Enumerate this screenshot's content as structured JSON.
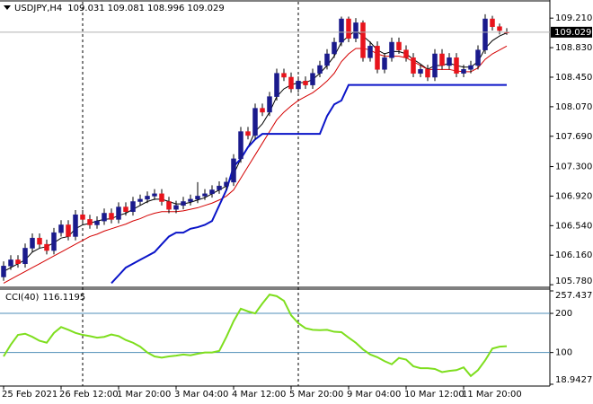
{
  "chart_data": [
    {
      "type": "candlestick",
      "title": "USDJPY,H4",
      "ohlc": [
        109.031,
        109.081,
        108.996,
        109.029
      ],
      "bull_color": "#1a1a8c",
      "bear_color": "#e8141c",
      "wick_color": "#000000",
      "categories": [
        "25 Feb 2021",
        null,
        null,
        null,
        null,
        null,
        null,
        null,
        "26 Feb 12:00",
        null,
        null,
        null,
        null,
        null,
        null,
        null,
        "1 Mar 20:00",
        null,
        null,
        null,
        null,
        null,
        null,
        null,
        "3 Mar 04:00",
        null,
        null,
        null,
        null,
        null,
        null,
        null,
        "4 Mar 12:00",
        null,
        null,
        null,
        null,
        null,
        null,
        null,
        "5 Mar 20:00",
        null,
        null,
        null,
        null,
        null,
        null,
        null,
        "9 Mar 04:00",
        null,
        null,
        null,
        null,
        null,
        null,
        null,
        "10 Mar 12:00",
        null,
        null,
        null,
        null,
        null,
        null,
        null,
        "11 Mar 20:00",
        null,
        null,
        null,
        null,
        null,
        null
      ],
      "open": [
        105.88,
        106.02,
        106.1,
        106.05,
        106.25,
        106.38,
        106.3,
        106.22,
        106.45,
        106.55,
        106.4,
        106.68,
        106.62,
        106.55,
        106.6,
        106.7,
        106.62,
        106.78,
        106.72,
        106.85,
        106.88,
        106.92,
        106.95,
        106.85,
        106.75,
        106.8,
        106.85,
        106.88,
        106.92,
        106.95,
        107.0,
        107.05,
        107.1,
        107.4,
        107.75,
        107.7,
        108.05,
        108.0,
        108.2,
        108.5,
        108.45,
        108.3,
        108.4,
        108.35,
        108.5,
        108.6,
        108.75,
        108.9,
        109.2,
        108.95,
        109.15,
        108.7,
        108.85,
        108.55,
        108.7,
        108.9,
        108.8,
        108.7,
        108.5,
        108.55,
        108.45,
        108.75,
        108.6,
        108.7,
        108.5,
        108.55,
        108.6,
        108.8,
        109.2,
        109.1,
        109.031
      ],
      "high": [
        106.08,
        106.16,
        106.16,
        106.31,
        106.44,
        106.44,
        106.36,
        106.51,
        106.61,
        106.61,
        106.74,
        106.74,
        106.68,
        106.66,
        106.76,
        106.76,
        106.84,
        106.84,
        106.91,
        106.94,
        106.98,
        107.01,
        107.01,
        106.91,
        106.86,
        106.91,
        106.94,
        107.1,
        107.01,
        107.06,
        107.11,
        107.16,
        107.46,
        107.81,
        107.81,
        108.11,
        108.11,
        108.26,
        108.56,
        108.56,
        108.51,
        108.46,
        108.46,
        108.56,
        108.66,
        108.81,
        108.96,
        109.23,
        109.23,
        109.21,
        109.18,
        108.91,
        108.91,
        108.76,
        108.96,
        108.96,
        108.86,
        108.76,
        108.61,
        108.61,
        108.81,
        108.81,
        108.76,
        108.76,
        108.61,
        108.66,
        108.86,
        109.26,
        109.24,
        109.14,
        109.081
      ],
      "low": [
        105.83,
        105.97,
        106.0,
        106.0,
        106.2,
        106.25,
        106.17,
        106.17,
        106.4,
        106.35,
        106.35,
        106.57,
        106.5,
        106.5,
        106.55,
        106.57,
        106.57,
        106.67,
        106.67,
        106.8,
        106.83,
        106.87,
        106.8,
        106.7,
        106.7,
        106.75,
        106.8,
        106.83,
        106.87,
        106.9,
        106.95,
        107.0,
        107.05,
        107.35,
        107.65,
        107.65,
        107.95,
        107.95,
        108.15,
        108.4,
        108.25,
        108.25,
        108.3,
        108.3,
        108.45,
        108.55,
        108.7,
        108.85,
        108.9,
        108.9,
        108.65,
        108.65,
        108.5,
        108.5,
        108.65,
        108.75,
        108.65,
        108.45,
        108.45,
        108.4,
        108.4,
        108.55,
        108.55,
        108.45,
        108.45,
        108.5,
        108.55,
        108.75,
        109.05,
        109.0,
        108.996
      ],
      "close": [
        106.02,
        106.1,
        106.05,
        106.25,
        106.38,
        106.3,
        106.22,
        106.45,
        106.55,
        106.4,
        106.68,
        106.62,
        106.55,
        106.6,
        106.7,
        106.62,
        106.78,
        106.72,
        106.85,
        106.88,
        106.92,
        106.95,
        106.85,
        106.75,
        106.8,
        106.85,
        106.88,
        106.92,
        106.95,
        107.0,
        107.05,
        107.1,
        107.4,
        107.75,
        107.7,
        108.05,
        108.0,
        108.2,
        108.5,
        108.45,
        108.3,
        108.4,
        108.35,
        108.5,
        108.6,
        108.75,
        108.9,
        109.2,
        108.95,
        109.15,
        108.7,
        108.85,
        108.55,
        108.7,
        108.9,
        108.8,
        108.7,
        108.5,
        108.55,
        108.45,
        108.75,
        108.6,
        108.7,
        108.5,
        108.55,
        108.6,
        108.8,
        109.2,
        109.1,
        109.05,
        109.029
      ],
      "overlays": [
        {
          "color": "#000000",
          "width": 1,
          "values": [
            105.95,
            106.0,
            106.05,
            106.1,
            106.2,
            106.25,
            106.27,
            106.32,
            106.38,
            106.4,
            106.5,
            106.55,
            106.57,
            106.6,
            106.62,
            106.63,
            106.67,
            106.7,
            106.75,
            106.8,
            106.85,
            106.88,
            106.88,
            106.85,
            106.82,
            106.82,
            106.84,
            106.87,
            106.9,
            106.95,
            107.0,
            107.05,
            107.2,
            107.4,
            107.55,
            107.75,
            107.85,
            108.0,
            108.2,
            108.3,
            108.35,
            108.38,
            108.38,
            108.42,
            108.5,
            108.6,
            108.72,
            108.9,
            108.98,
            109.05,
            108.98,
            108.9,
            108.8,
            108.75,
            108.78,
            108.78,
            108.75,
            108.68,
            108.62,
            108.55,
            108.6,
            108.6,
            108.63,
            108.6,
            108.58,
            108.58,
            108.65,
            108.82,
            108.92,
            108.98,
            109.02
          ]
        },
        {
          "color": "#d40000",
          "width": 1,
          "values": [
            105.8,
            105.85,
            105.9,
            105.95,
            106.0,
            106.05,
            106.1,
            106.15,
            106.2,
            106.25,
            106.3,
            106.35,
            106.4,
            106.43,
            106.47,
            106.5,
            106.53,
            106.56,
            106.6,
            106.63,
            106.67,
            106.7,
            106.72,
            106.72,
            106.72,
            106.73,
            106.75,
            106.77,
            106.8,
            106.83,
            106.87,
            106.92,
            107.0,
            107.15,
            107.3,
            107.45,
            107.6,
            107.75,
            107.9,
            108.0,
            108.08,
            108.15,
            108.2,
            108.25,
            108.32,
            108.4,
            108.5,
            108.65,
            108.75,
            108.82,
            108.82,
            108.8,
            108.75,
            108.72,
            108.72,
            108.72,
            108.7,
            108.65,
            108.6,
            108.55,
            108.55,
            108.55,
            108.55,
            108.53,
            108.52,
            108.52,
            108.57,
            108.68,
            108.75,
            108.8,
            108.85
          ]
        },
        {
          "color": "#0a14c8",
          "width": 2,
          "values": [
            null,
            null,
            null,
            null,
            null,
            null,
            null,
            null,
            null,
            null,
            null,
            null,
            null,
            null,
            null,
            105.8,
            105.9,
            106.0,
            106.05,
            106.1,
            106.15,
            106.2,
            106.3,
            106.4,
            106.45,
            106.45,
            106.5,
            106.52,
            106.55,
            106.6,
            106.8,
            107.0,
            107.3,
            107.4,
            107.55,
            107.65,
            107.72,
            107.72,
            107.72,
            107.72,
            107.72,
            107.72,
            107.72,
            107.72,
            107.72,
            107.95,
            108.1,
            108.15,
            108.35,
            108.35,
            108.35,
            108.35,
            108.35,
            108.35,
            108.35,
            108.35,
            108.35,
            108.35,
            108.35,
            108.35,
            108.35,
            108.35,
            108.35,
            108.35,
            108.35,
            108.35,
            108.35,
            108.35,
            108.35,
            108.35,
            108.35
          ]
        }
      ],
      "current_price": 109.029,
      "ylim": [
        105.77,
        109.42
      ],
      "yticks": [
        {
          "value": 109.21,
          "label": "109.210"
        },
        {
          "value": 108.83,
          "label": "108.830"
        },
        {
          "value": 108.45,
          "label": "108.450"
        },
        {
          "value": 108.07,
          "label": "108.070"
        },
        {
          "value": 107.69,
          "label": "107.690"
        },
        {
          "value": 107.3,
          "label": "107.300"
        },
        {
          "value": 106.92,
          "label": "106.920"
        },
        {
          "value": 106.54,
          "label": "106.540"
        },
        {
          "value": 106.16,
          "label": "106.160"
        },
        {
          "value": 105.78,
          "label": "105.780"
        }
      ]
    },
    {
      "type": "line",
      "title": "CCI(40)",
      "last_value": 116.1195,
      "color": "#7ede1e",
      "level_color": "#4f8fb8",
      "values": [
        90,
        120,
        145,
        148,
        140,
        130,
        125,
        150,
        165,
        158,
        150,
        145,
        142,
        138,
        140,
        146,
        142,
        132,
        125,
        115,
        100,
        90,
        87,
        90,
        92,
        95,
        93,
        97,
        100,
        100,
        104,
        140,
        180,
        212,
        205,
        200,
        225,
        248,
        244,
        232,
        195,
        175,
        162,
        158,
        157,
        158,
        153,
        152,
        138,
        125,
        108,
        95,
        88,
        78,
        70,
        86,
        82,
        65,
        60,
        60,
        58,
        50,
        53,
        55,
        62,
        40,
        55,
        80,
        110,
        115,
        116.1195
      ],
      "levels": [
        200,
        100
      ],
      "ylim": [
        18.9427,
        257.4371
      ],
      "yticks": [
        257.4371,
        200,
        100,
        18.9427
      ]
    }
  ]
}
